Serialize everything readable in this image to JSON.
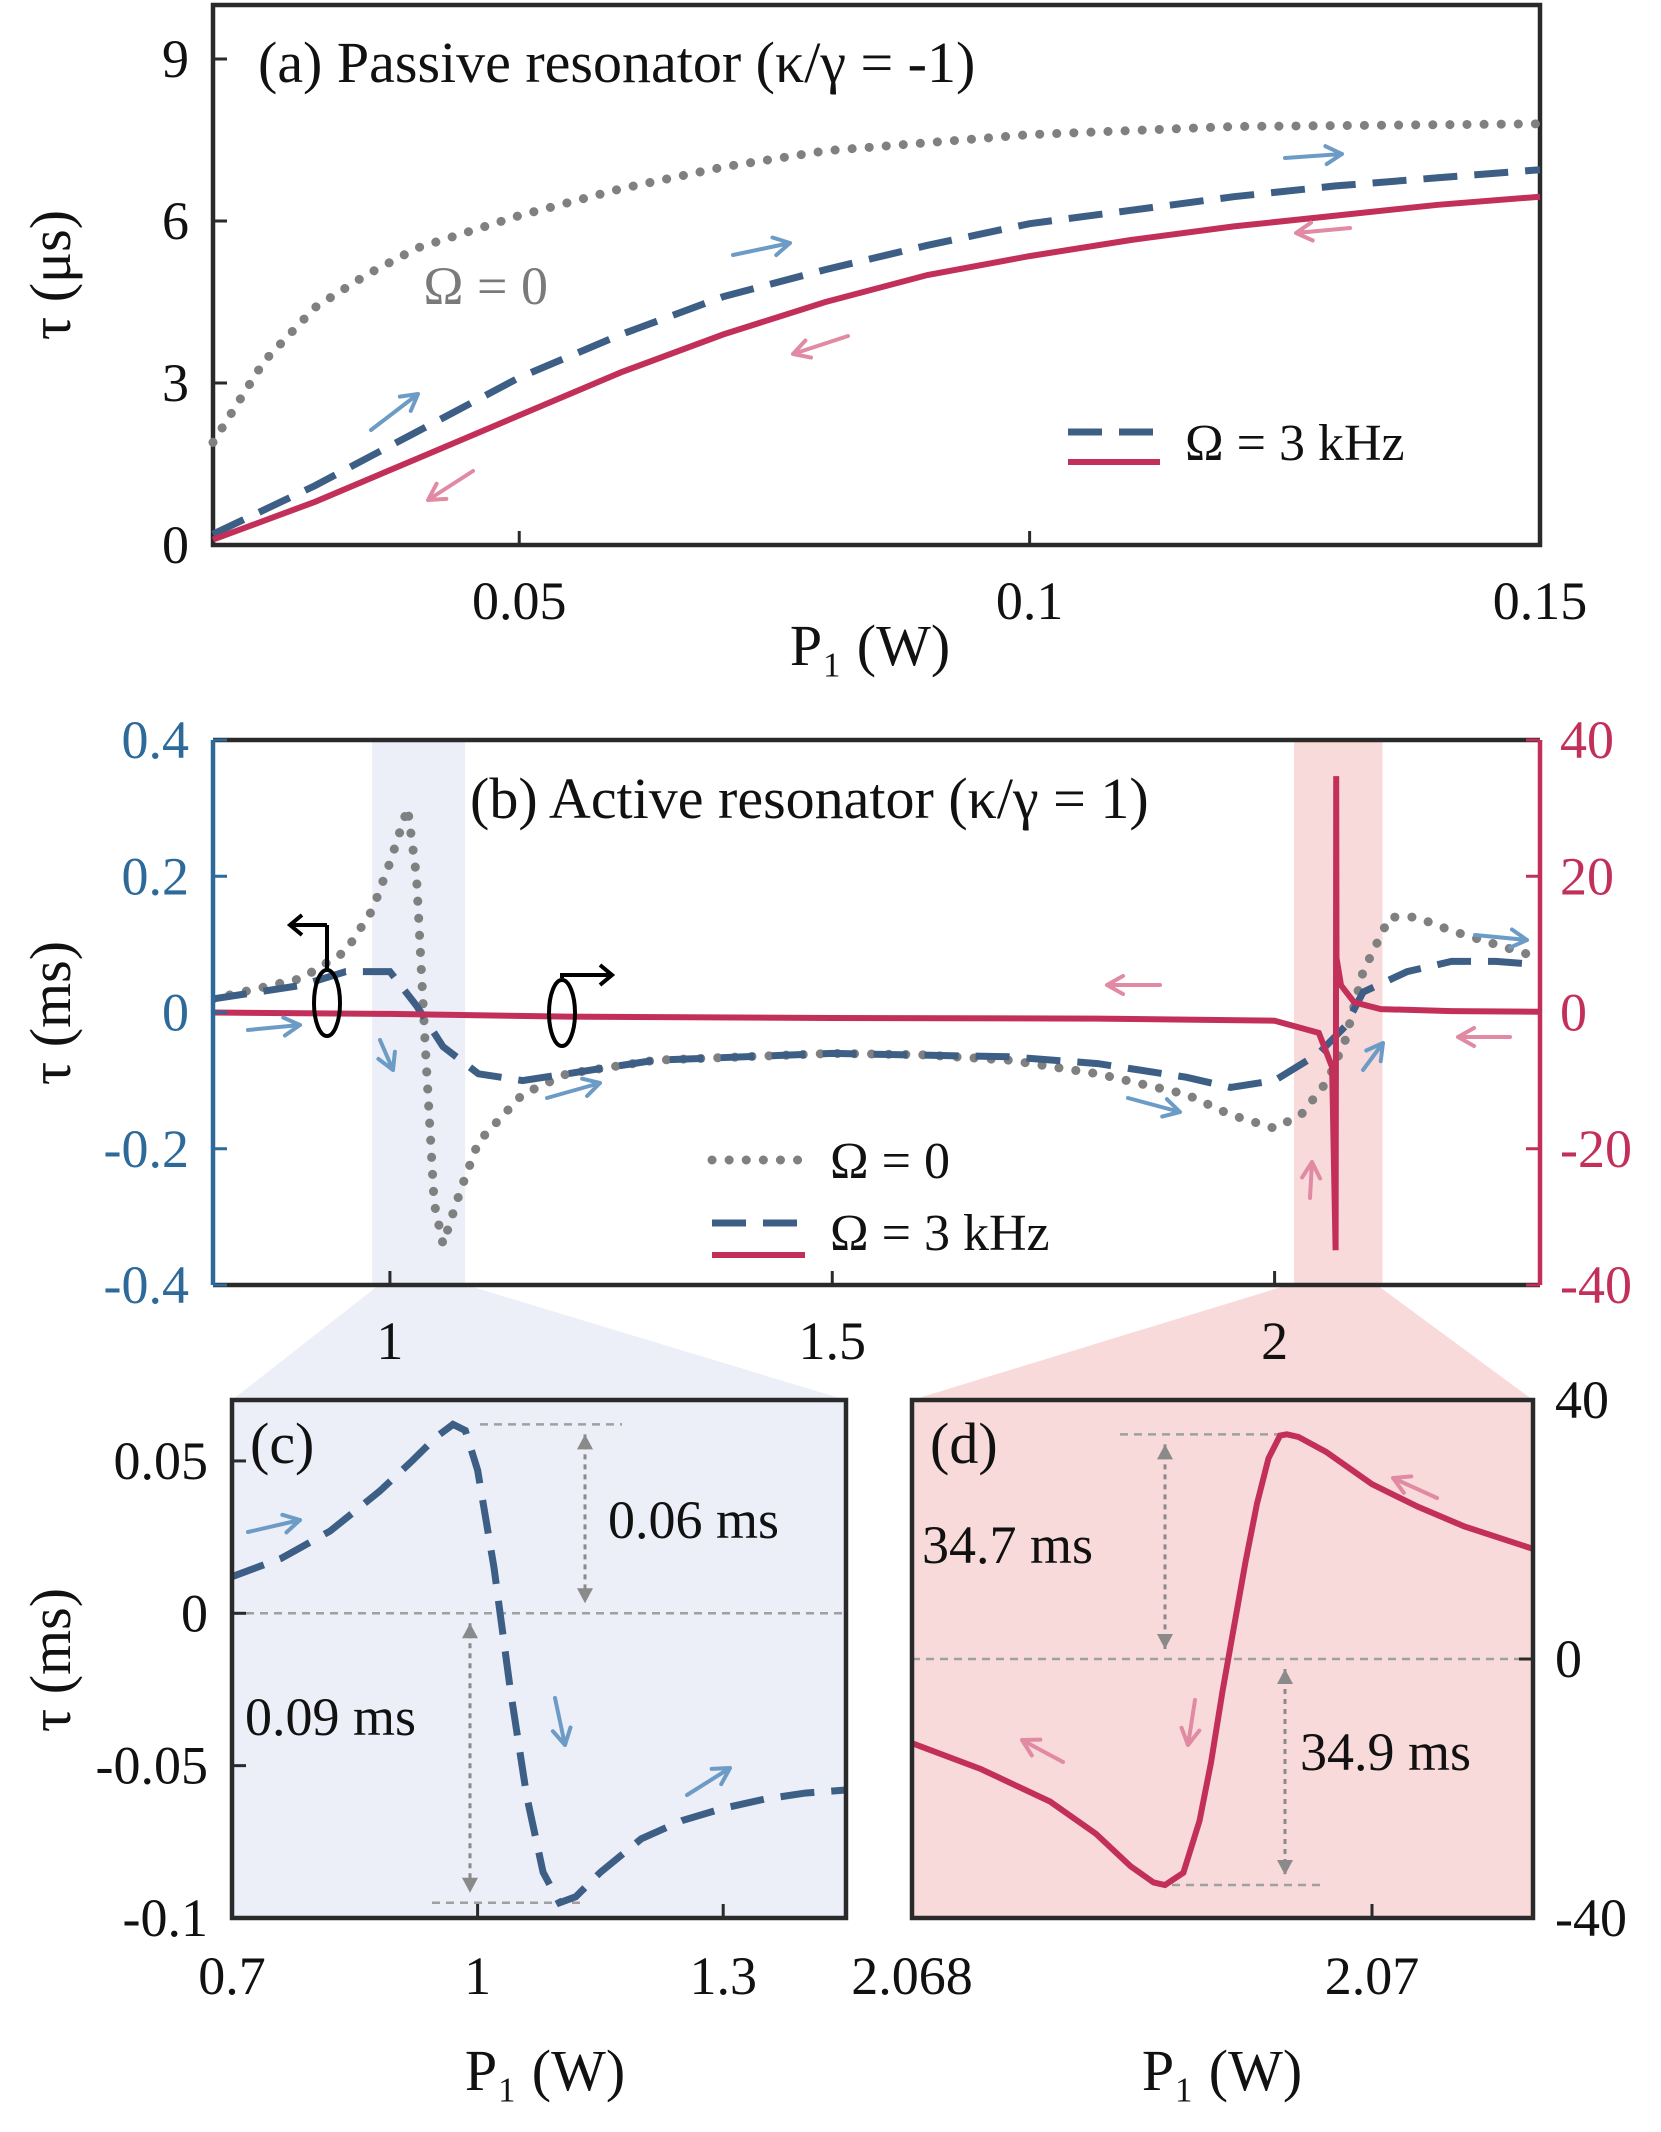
{
  "chart_data": [
    {
      "panel": "a",
      "type": "line",
      "title": "(a) Passive resonator (κ/γ = -1)",
      "xlabel": "P₁ (W)",
      "ylabel": "τ (μs)",
      "xlim": [
        0.02,
        0.15
      ],
      "ylim": [
        0,
        10
      ],
      "xticks": [
        0.05,
        0.1,
        0.15
      ],
      "xticklabels": [
        "0.05",
        "0.1",
        "0.15"
      ],
      "yticks": [
        0,
        3,
        6,
        9
      ],
      "yticklabels": [
        "0",
        "3",
        "6",
        "9"
      ],
      "legend_position": "lower-right",
      "annotations": [
        {
          "text": "Ω = 0",
          "x": 0.046,
          "y": 4.8
        }
      ],
      "series": [
        {
          "name": "",
          "style": "dotted",
          "color": "#808080",
          "x": [
            0.02,
            0.025,
            0.03,
            0.035,
            0.04,
            0.05,
            0.06,
            0.07,
            0.08,
            0.1,
            0.12,
            0.15
          ],
          "y": [
            1.9,
            3.4,
            4.4,
            5.0,
            5.5,
            6.1,
            6.6,
            7.0,
            7.3,
            7.6,
            7.75,
            7.8
          ]
        },
        {
          "name": "Ω = 3 kHz",
          "style": "dashed",
          "color": "#3d5f85",
          "x": [
            0.02,
            0.03,
            0.04,
            0.05,
            0.06,
            0.07,
            0.08,
            0.09,
            0.1,
            0.11,
            0.12,
            0.13,
            0.14,
            0.15
          ],
          "y": [
            0.2,
            1.1,
            2.1,
            3.1,
            3.9,
            4.6,
            5.1,
            5.55,
            5.95,
            6.2,
            6.45,
            6.65,
            6.8,
            6.95
          ]
        },
        {
          "name": "Ω = 3 kHz",
          "style": "solid",
          "color": "#c2305a",
          "x": [
            0.02,
            0.03,
            0.04,
            0.05,
            0.06,
            0.07,
            0.08,
            0.09,
            0.1,
            0.11,
            0.12,
            0.13,
            0.14,
            0.15
          ],
          "y": [
            0.1,
            0.8,
            1.6,
            2.4,
            3.2,
            3.9,
            4.5,
            5.0,
            5.35,
            5.65,
            5.9,
            6.1,
            6.3,
            6.45
          ]
        }
      ]
    },
    {
      "panel": "b",
      "type": "line",
      "title": "(b) Active resonator (κ/γ = 1)",
      "xlabel": "",
      "ylabel": "τ (ms)",
      "xlim": [
        0.8,
        2.3
      ],
      "ylim_left": [
        -0.4,
        0.4
      ],
      "ylim_right": [
        -40,
        40
      ],
      "xticks": [
        1,
        1.5,
        2
      ],
      "xticklabels": [
        "1",
        "1.5",
        "2"
      ],
      "yticks_left": [
        -0.4,
        -0.2,
        0,
        0.2,
        0.4
      ],
      "yticklabels_left": [
        "-0.4",
        "-0.2",
        "0",
        "0.2",
        "0.4"
      ],
      "yticks_right": [
        -40,
        -20,
        0,
        20,
        40
      ],
      "yticklabels_right": [
        "-40",
        "-20",
        "0",
        "20",
        "40"
      ],
      "left_axis_color": "#2e6a99",
      "right_axis_color": "#c2305a",
      "highlight_ranges": [
        {
          "x": [
            0.98,
            1.085
          ],
          "color": "#eceef8"
        },
        {
          "x": [
            2.022,
            2.122
          ],
          "color": "#f9dada"
        }
      ],
      "legend_position": "lower-center",
      "series": [
        {
          "name": "Ω = 0",
          "style": "dotted",
          "color": "#808080",
          "axis": "left",
          "x": [
            0.8,
            0.9,
            0.95,
            0.98,
            1.0,
            1.02,
            1.03,
            1.04,
            1.05,
            1.06,
            1.08,
            1.1,
            1.15,
            1.2,
            1.3,
            1.4,
            1.5,
            1.6,
            1.7,
            1.8,
            1.9,
            1.95,
            2.0,
            2.03,
            2.06,
            2.08,
            2.1,
            2.13,
            2.16,
            2.2,
            2.25,
            2.3
          ],
          "y": [
            0.02,
            0.05,
            0.09,
            0.15,
            0.22,
            0.3,
            0.2,
            -0.05,
            -0.28,
            -0.34,
            -0.26,
            -0.19,
            -0.12,
            -0.09,
            -0.07,
            -0.065,
            -0.06,
            -0.062,
            -0.07,
            -0.09,
            -0.12,
            -0.15,
            -0.17,
            -0.15,
            -0.1,
            -0.04,
            0.06,
            0.14,
            0.14,
            0.12,
            0.1,
            0.08
          ]
        },
        {
          "name": "Ω = 3 kHz",
          "style": "dashed",
          "color": "#3d5f85",
          "axis": "left",
          "x": [
            0.8,
            0.9,
            0.95,
            1.0,
            1.03,
            1.06,
            1.1,
            1.15,
            1.2,
            1.3,
            1.5,
            1.7,
            1.8,
            1.9,
            1.95,
            2.0,
            2.05,
            2.08,
            2.1,
            2.15,
            2.2,
            2.25,
            2.3
          ],
          "y": [
            0.02,
            0.04,
            0.06,
            0.06,
            0.01,
            -0.05,
            -0.09,
            -0.1,
            -0.09,
            -0.07,
            -0.06,
            -0.065,
            -0.075,
            -0.095,
            -0.11,
            -0.1,
            -0.06,
            -0.02,
            0.03,
            0.06,
            0.075,
            0.075,
            0.07
          ]
        },
        {
          "name": "Ω = 3 kHz",
          "style": "solid",
          "color": "#c2305a",
          "axis": "right",
          "x": [
            0.8,
            1.0,
            1.2,
            1.5,
            1.8,
            2.0,
            2.05,
            2.065,
            2.069,
            2.0694,
            2.0696,
            2.07,
            2.075,
            2.09,
            2.12,
            2.2,
            2.3
          ],
          "y": [
            0.0,
            -0.2,
            -0.6,
            -0.8,
            -0.9,
            -1.2,
            -3,
            -8,
            -34.9,
            0,
            34.7,
            8,
            4,
            1.5,
            0.5,
            0.2,
            0.1
          ]
        }
      ]
    },
    {
      "panel": "c",
      "type": "line",
      "title": "(c)",
      "xlabel": "P₁ (W)",
      "ylabel": "τ (ms)",
      "xlim": [
        0.7,
        1.45
      ],
      "ylim": [
        -0.1,
        0.07
      ],
      "xticks": [
        0.7,
        1,
        1.3
      ],
      "xticklabels": [
        "0.7",
        "1",
        "1.3"
      ],
      "yticks": [
        -0.1,
        -0.05,
        0,
        0.05
      ],
      "yticklabels": [
        "-0.1",
        "-0.05",
        "0",
        "0.05"
      ],
      "annotations": [
        {
          "text": "0.06 ms",
          "x": 1.18,
          "y": 0.03
        },
        {
          "text": "0.09 ms",
          "x": 0.84,
          "y": -0.045
        }
      ],
      "series": [
        {
          "name": "Ω = 3 kHz",
          "style": "dashed",
          "color": "#3d5f85",
          "x": [
            0.7,
            0.76,
            0.82,
            0.88,
            0.92,
            0.95,
            0.97,
            0.985,
            1.0,
            1.02,
            1.04,
            1.06,
            1.08,
            1.1,
            1.12,
            1.15,
            1.2,
            1.25,
            1.3,
            1.35,
            1.4,
            1.45
          ],
          "y": [
            0.012,
            0.018,
            0.027,
            0.04,
            0.05,
            0.058,
            0.062,
            0.06,
            0.047,
            0.015,
            -0.025,
            -0.06,
            -0.085,
            -0.095,
            -0.093,
            -0.085,
            -0.074,
            -0.068,
            -0.064,
            -0.061,
            -0.059,
            -0.058
          ]
        }
      ]
    },
    {
      "panel": "d",
      "type": "line",
      "title": "(d)",
      "xlabel": "P₁ (W)",
      "ylabel": "",
      "xlim": [
        2.068,
        2.0707
      ],
      "ylim": [
        -40,
        40
      ],
      "xticks": [
        2.068,
        2.07
      ],
      "xticklabels": [
        "2.068",
        "2.07"
      ],
      "yticks": [
        -40,
        0,
        40
      ],
      "yticklabels": [
        "-40",
        "0",
        "40"
      ],
      "annotations": [
        {
          "text": "34.7 ms",
          "x": 2.0686,
          "y": 20
        },
        {
          "text": "34.9 ms",
          "x": 2.0704,
          "y": -17
        }
      ],
      "series": [
        {
          "name": "Ω = 3 kHz",
          "style": "solid",
          "color": "#c2305a",
          "x": [
            2.068,
            2.0683,
            2.0686,
            2.0688,
            2.06895,
            2.06905,
            2.0691,
            2.06918,
            2.06925,
            2.0693,
            2.06935,
            2.0694,
            2.06945,
            2.0695,
            2.06955,
            2.0696,
            2.06963,
            2.06968,
            2.0698,
            2.0699,
            2.07,
            2.0702,
            2.0704,
            2.0707
          ],
          "y": [
            -13,
            -17,
            -22,
            -27,
            -32,
            -34.5,
            -34.9,
            -33,
            -25,
            -16,
            -5,
            5,
            15,
            24,
            31,
            34.5,
            34.7,
            34.3,
            32,
            29.5,
            27,
            23.5,
            20.5,
            17
          ]
        }
      ]
    }
  ]
}
